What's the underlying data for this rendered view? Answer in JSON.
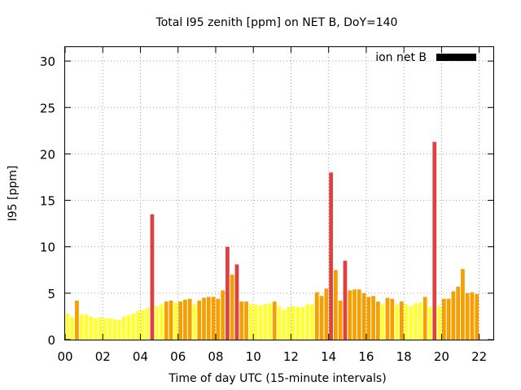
{
  "chart_data": {
    "type": "bar",
    "title": "Total I95 zenith [ppm] on NET B, DoY=140",
    "xlabel": "Time of day UTC (15-minute intervals)",
    "ylabel": "I95 [ppm]",
    "xlim": [
      0,
      22.75
    ],
    "ylim": [
      0,
      31.5
    ],
    "x_ticks": [
      0,
      2,
      4,
      6,
      8,
      10,
      12,
      14,
      16,
      18,
      20,
      22
    ],
    "x_tick_labels": [
      "00",
      "02",
      "04",
      "06",
      "08",
      "10",
      "12",
      "14",
      "16",
      "18",
      "20",
      "22"
    ],
    "y_ticks": [
      0,
      5,
      10,
      15,
      20,
      25,
      30
    ],
    "y_tick_labels": [
      "0",
      "5",
      "10",
      "15",
      "20",
      "25",
      "30"
    ],
    "grid": true,
    "legend": {
      "position": "top-right",
      "entries": [
        {
          "label": "ion net B",
          "color": "#000000"
        }
      ]
    },
    "color_thresholds": {
      "low_max": 4,
      "mid_max": 8
    },
    "colors": {
      "low": "#ffff33",
      "mid": "#f5a000",
      "high": "#e04040"
    },
    "series": [
      {
        "x": [
          0.25,
          0.5,
          0.75,
          1.0,
          1.25,
          1.5,
          1.75,
          2.0,
          2.25,
          2.5,
          2.75,
          3.0,
          3.25,
          3.5,
          3.75,
          4.0,
          4.25,
          4.5,
          4.75,
          5.0,
          5.25,
          5.5,
          5.75,
          6.0,
          6.25,
          6.5,
          6.75,
          7.0,
          7.25,
          7.5,
          7.75,
          8.0,
          8.25,
          8.5,
          8.75,
          9.0,
          9.25,
          9.5,
          9.75,
          10.0,
          10.25,
          10.5,
          10.75,
          11.0,
          11.25,
          11.5,
          11.75,
          12.0,
          12.25,
          12.5,
          12.75,
          13.0,
          13.25,
          13.5,
          13.75,
          14.0,
          14.25,
          14.5,
          14.75,
          15.0,
          15.25,
          15.5,
          15.75,
          16.0,
          16.25,
          16.5,
          16.75,
          17.0,
          17.25,
          17.5,
          17.75,
          18.0,
          18.25,
          18.5,
          18.75,
          19.0,
          19.25,
          19.5,
          19.75,
          20.0,
          20.25,
          20.5,
          20.75,
          21.0,
          21.25,
          21.5,
          21.75,
          22.0,
          22.25,
          22.5
        ],
        "values": [
          2.8,
          2.4,
          4.2,
          2.7,
          2.7,
          2.5,
          2.3,
          2.4,
          2.3,
          2.3,
          2.2,
          2.1,
          2.5,
          2.6,
          2.8,
          3.1,
          3.2,
          3.4,
          13.5,
          3.6,
          3.8,
          4.1,
          4.2,
          4.0,
          4.1,
          4.3,
          4.4,
          3.8,
          4.2,
          4.5,
          4.6,
          4.6,
          4.4,
          5.3,
          10.0,
          7.0,
          8.1,
          4.1,
          4.1,
          3.8,
          3.8,
          3.7,
          3.8,
          3.9,
          4.1,
          3.6,
          3.2,
          3.5,
          3.6,
          3.5,
          3.5,
          3.8,
          3.8,
          5.1,
          4.7,
          5.5,
          18.0,
          7.5,
          4.2,
          8.5,
          5.3,
          5.4,
          5.4,
          5.0,
          4.6,
          4.7,
          4.1,
          3.8,
          4.5,
          4.4,
          3.8,
          4.1,
          3.8,
          3.6,
          3.9,
          4.0,
          4.6,
          3.5,
          21.3,
          3.6,
          4.4,
          4.4,
          5.2,
          5.7,
          7.6,
          5.0,
          5.1,
          4.9,
          0,
          0
        ]
      }
    ]
  }
}
